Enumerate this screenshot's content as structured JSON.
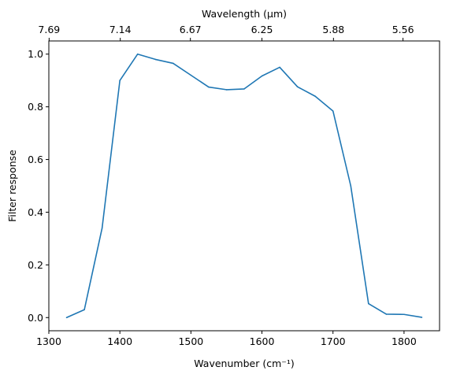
{
  "chart_data": {
    "type": "line",
    "xlabel": "Wavenumber (cm⁻¹)",
    "ylabel": "Filter response",
    "top_xlabel": "Wavelength (μm)",
    "xlim": [
      1300,
      1850
    ],
    "ylim": [
      -0.05,
      1.05
    ],
    "x_ticks": [
      1300,
      1400,
      1500,
      1600,
      1700,
      1800
    ],
    "y_ticks": [
      0.0,
      0.2,
      0.4,
      0.6,
      0.8,
      1.0
    ],
    "y_tick_labels": [
      "0.0",
      "0.2",
      "0.4",
      "0.6",
      "0.8",
      "1.0"
    ],
    "top_ticks": [
      "7.69",
      "7.14",
      "6.67",
      "6.25",
      "5.88",
      "5.56"
    ],
    "grid": false,
    "line_color": "#1f77b4",
    "series": [
      {
        "x": [
          1325,
          1350,
          1375,
          1400,
          1425,
          1450,
          1475,
          1500,
          1525,
          1550,
          1575,
          1600,
          1625,
          1650,
          1675,
          1700,
          1725,
          1750,
          1775,
          1800,
          1825
        ],
        "values": [
          0.0,
          0.03,
          0.34,
          0.9,
          1.0,
          0.98,
          0.965,
          0.92,
          0.875,
          0.865,
          0.868,
          0.917,
          0.95,
          0.876,
          0.84,
          0.784,
          0.5,
          0.053,
          0.013,
          0.012,
          0.001
        ]
      }
    ]
  }
}
